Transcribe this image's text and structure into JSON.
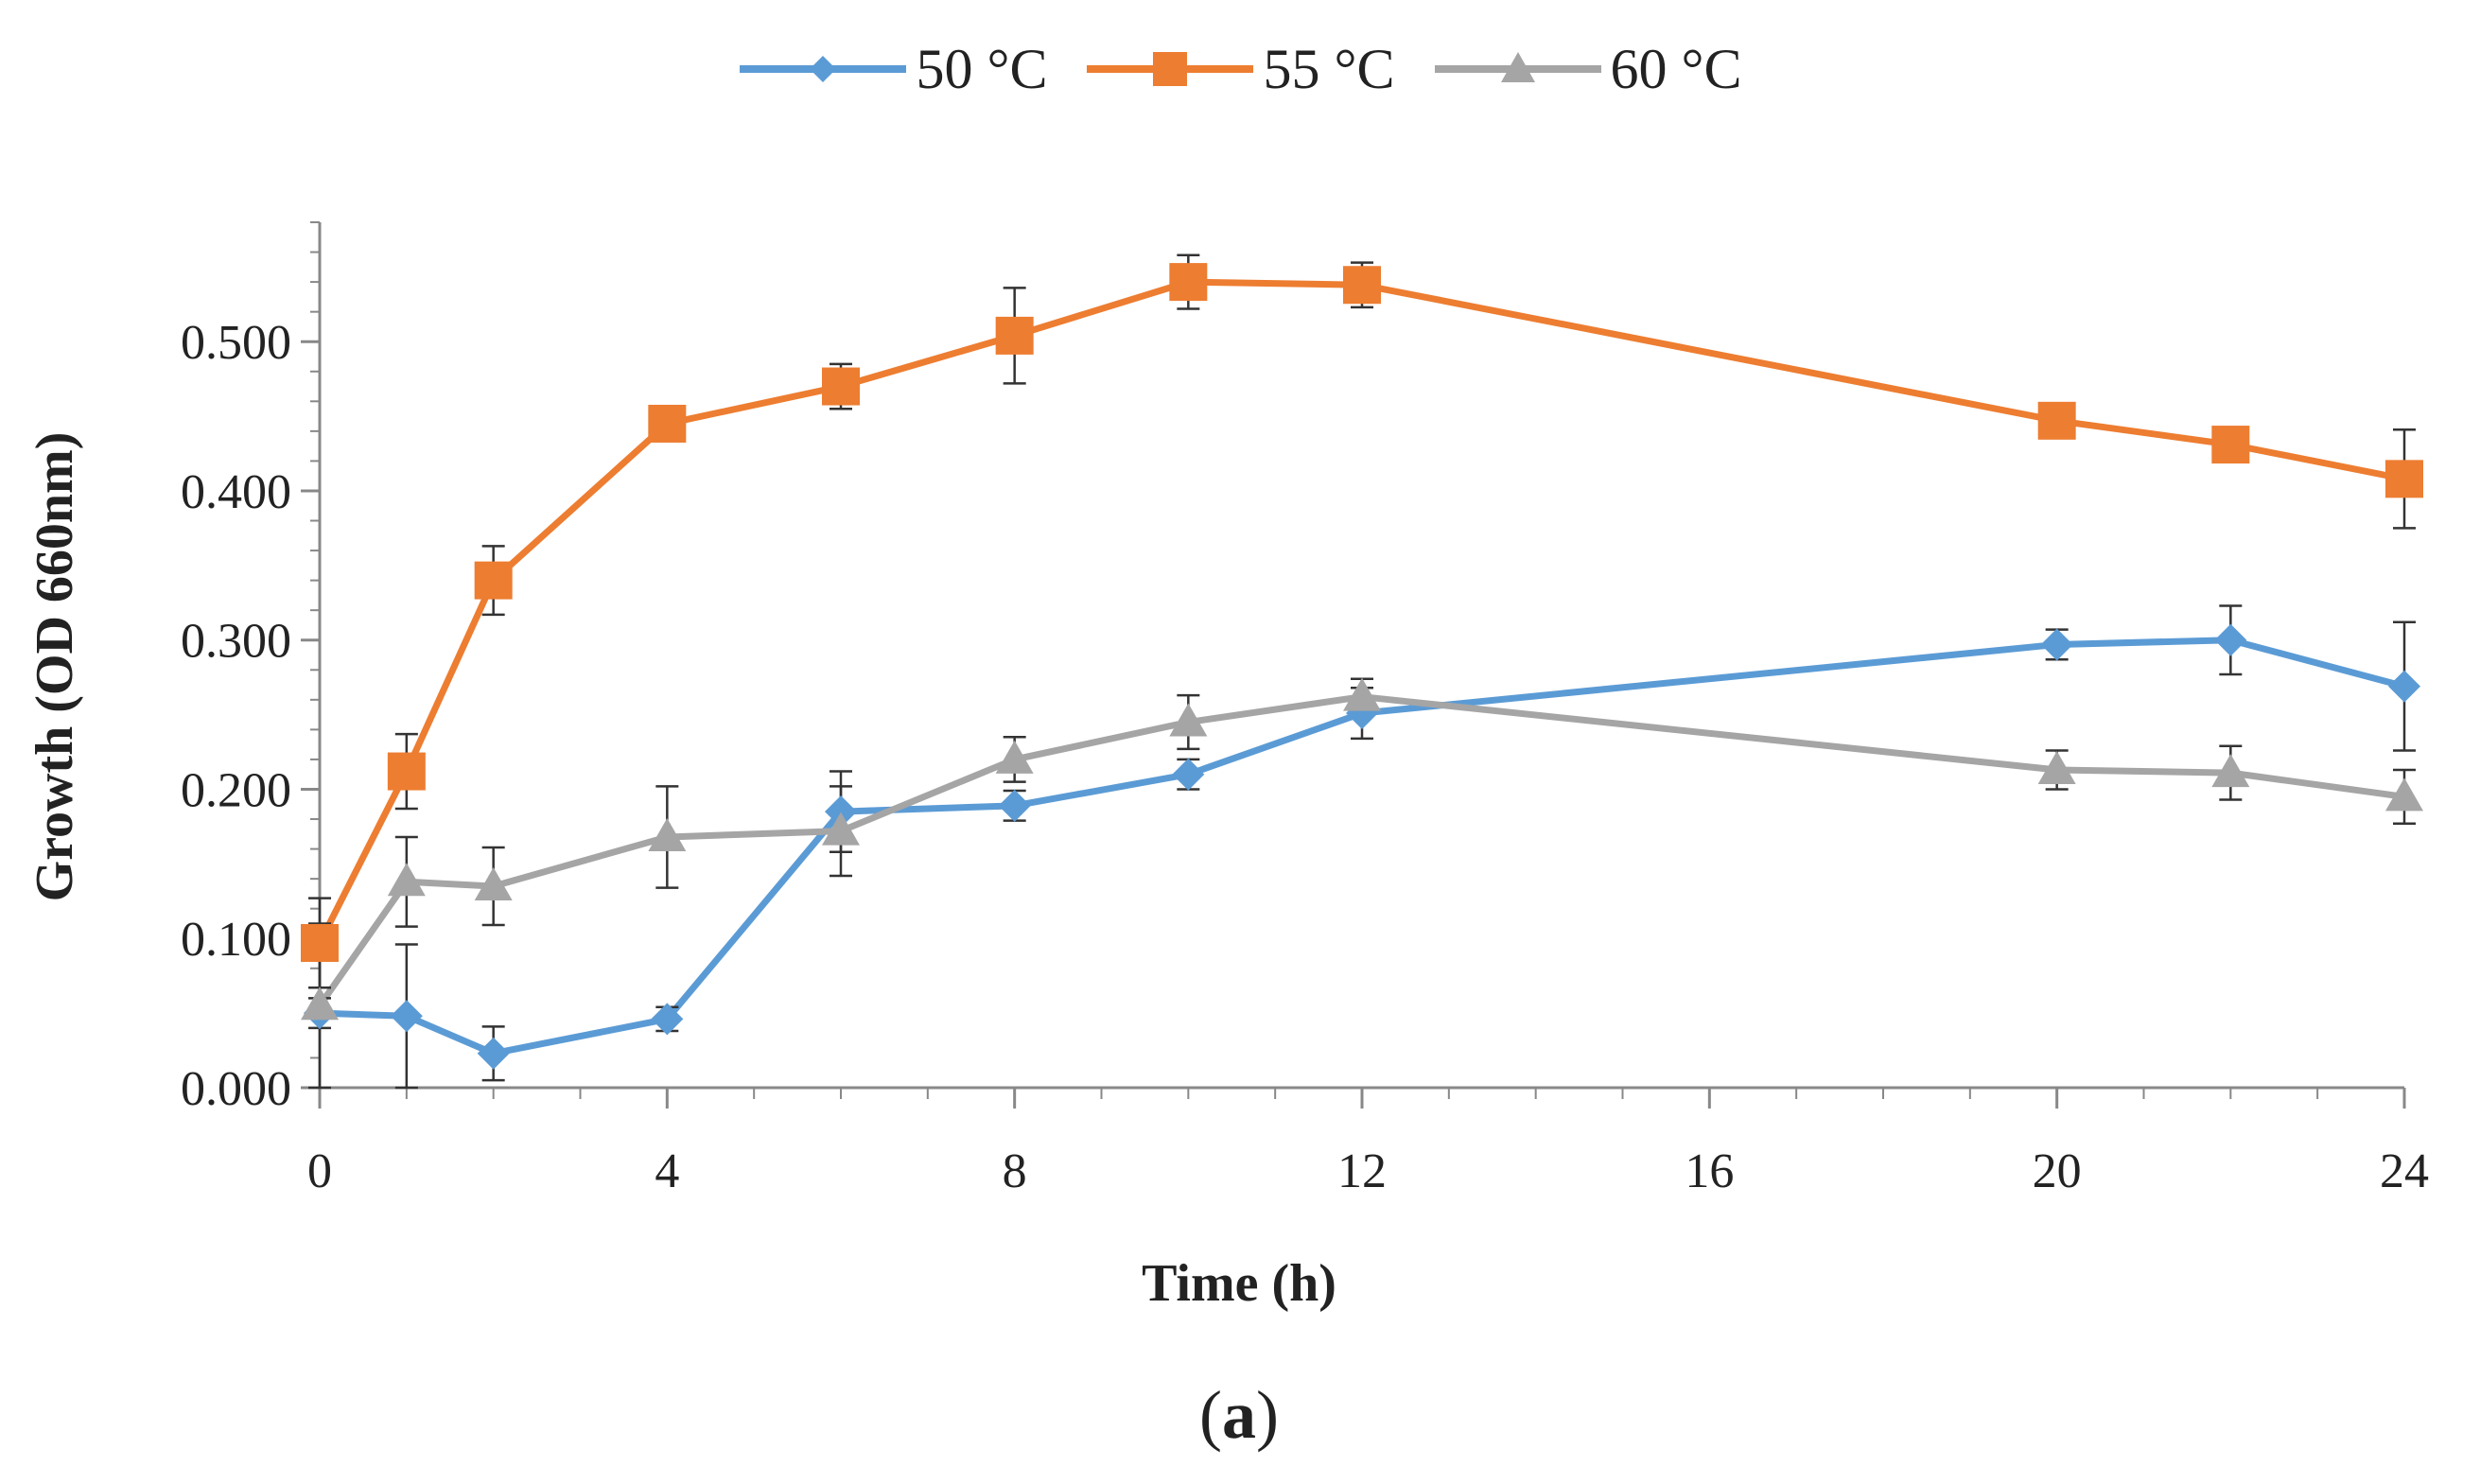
{
  "figure": {
    "panel_label_open": "(",
    "panel_label_letter": "a",
    "panel_label_close": ")"
  },
  "chart_data": {
    "type": "line",
    "xlabel": "Time (h)",
    "ylabel": "Growth (OD 660nm)",
    "x_ticks": [
      0,
      4,
      8,
      12,
      16,
      20,
      24
    ],
    "y_ticks": [
      "0.000",
      "0.100",
      "0.200",
      "0.300",
      "0.400",
      "0.500"
    ],
    "xlim": [
      0,
      24
    ],
    "ylim": [
      0,
      0.58
    ],
    "legend_position": "top-center",
    "grid": false,
    "series": [
      {
        "name": "50 °C",
        "color": "#5b9bd5",
        "marker": "diamond",
        "x": [
          0,
          1,
          2,
          4,
          6,
          8,
          10,
          12,
          20,
          22,
          24
        ],
        "y": [
          0.05,
          0.048,
          0.023,
          0.046,
          0.185,
          0.189,
          0.21,
          0.251,
          0.297,
          0.3,
          0.269
        ],
        "err": [
          0.01,
          0.048,
          0.018,
          0.008,
          0.027,
          0.01,
          0.01,
          0.017,
          0.01,
          0.023,
          0.043
        ]
      },
      {
        "name": "55 °C",
        "color": "#ed7d31",
        "marker": "square",
        "x": [
          0,
          1,
          2,
          4,
          6,
          8,
          10,
          12,
          20,
          22,
          24
        ],
        "y": [
          0.097,
          0.212,
          0.34,
          0.445,
          0.47,
          0.504,
          0.54,
          0.538,
          0.447,
          0.431,
          0.408
        ],
        "err": [
          0.03,
          0.025,
          0.023,
          0.005,
          0.015,
          0.032,
          0.018,
          0.015,
          0.005,
          0.005,
          0.033
        ]
      },
      {
        "name": "60 °C",
        "color": "#a5a5a5",
        "marker": "triangle",
        "x": [
          0,
          1,
          2,
          4,
          6,
          8,
          10,
          12,
          20,
          22,
          24
        ],
        "y": [
          0.055,
          0.138,
          0.135,
          0.168,
          0.172,
          0.22,
          0.245,
          0.262,
          0.213,
          0.211,
          0.195
        ],
        "err": [
          0.055,
          0.03,
          0.026,
          0.034,
          0.03,
          0.015,
          0.018,
          0.012,
          0.013,
          0.018,
          0.018
        ]
      }
    ]
  }
}
